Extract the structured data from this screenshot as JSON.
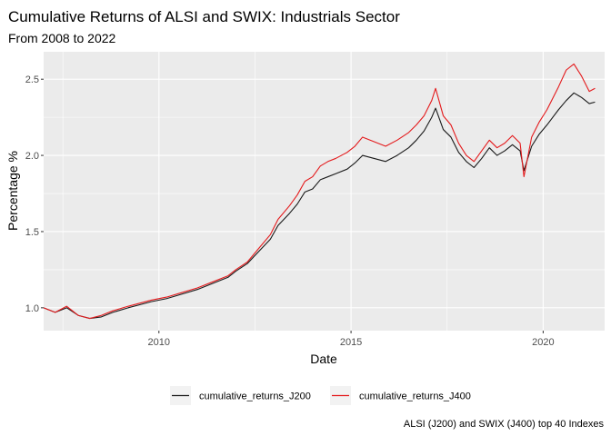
{
  "chart_data": {
    "type": "line",
    "title": "Cumulative Returns of ALSI and SWIX: Industrials Sector",
    "subtitle": "From 2008 to 2022",
    "xlabel": "Date",
    "ylabel": "Percentage %",
    "caption": "ALSI (J200) and SWIX (J400) top 40 Indexes",
    "xlim": [
      2007.0,
      2021.6
    ],
    "ylim": [
      0.85,
      2.68
    ],
    "x_ticks": [
      2010,
      2015,
      2020
    ],
    "x_tick_labels": [
      "2010",
      "2015",
      "2020"
    ],
    "y_ticks": [
      1.0,
      1.5,
      2.0,
      2.5
    ],
    "y_tick_labels": [
      "1.0",
      "1.5",
      "2.0",
      "2.5"
    ],
    "grid": true,
    "legend_position": "bottom",
    "series": [
      {
        "name": "cumulative_returns_J200",
        "color": "#1a1a1a",
        "x": [
          2007.0,
          2007.3,
          2007.6,
          2007.9,
          2008.2,
          2008.5,
          2008.8,
          2009.2,
          2009.5,
          2009.8,
          2010.2,
          2010.6,
          2011.0,
          2011.4,
          2011.8,
          2012.0,
          2012.3,
          2012.6,
          2012.9,
          2013.1,
          2013.4,
          2013.6,
          2013.8,
          2014.0,
          2014.2,
          2014.4,
          2014.6,
          2014.9,
          2015.1,
          2015.3,
          2015.6,
          2015.9,
          2016.2,
          2016.5,
          2016.7,
          2016.9,
          2017.1,
          2017.2,
          2017.4,
          2017.6,
          2017.8,
          2018.0,
          2018.2,
          2018.4,
          2018.6,
          2018.8,
          2019.0,
          2019.2,
          2019.4,
          2019.5,
          2019.7,
          2019.9,
          2020.1,
          2020.4,
          2020.6,
          2020.8,
          2021.0,
          2021.2,
          2021.35
        ],
        "values": [
          1.0,
          0.97,
          1.0,
          0.95,
          0.93,
          0.94,
          0.97,
          1.0,
          1.02,
          1.04,
          1.06,
          1.09,
          1.12,
          1.16,
          1.2,
          1.24,
          1.29,
          1.37,
          1.45,
          1.54,
          1.62,
          1.68,
          1.76,
          1.78,
          1.84,
          1.86,
          1.88,
          1.91,
          1.95,
          2.0,
          1.98,
          1.96,
          2.0,
          2.05,
          2.1,
          2.16,
          2.25,
          2.31,
          2.17,
          2.12,
          2.02,
          1.96,
          1.92,
          1.98,
          2.05,
          2.0,
          2.03,
          2.07,
          2.03,
          1.9,
          2.06,
          2.14,
          2.2,
          2.3,
          2.36,
          2.41,
          2.38,
          2.34,
          2.35
        ]
      },
      {
        "name": "cumulative_returns_J400",
        "color": "#e41a1c",
        "x": [
          2007.0,
          2007.3,
          2007.6,
          2007.9,
          2008.2,
          2008.5,
          2008.8,
          2009.2,
          2009.5,
          2009.8,
          2010.2,
          2010.6,
          2011.0,
          2011.4,
          2011.8,
          2012.0,
          2012.3,
          2012.6,
          2012.9,
          2013.1,
          2013.4,
          2013.6,
          2013.8,
          2014.0,
          2014.2,
          2014.4,
          2014.6,
          2014.9,
          2015.1,
          2015.3,
          2015.6,
          2015.9,
          2016.2,
          2016.5,
          2016.7,
          2016.9,
          2017.1,
          2017.2,
          2017.4,
          2017.6,
          2017.8,
          2018.0,
          2018.2,
          2018.4,
          2018.6,
          2018.8,
          2019.0,
          2019.2,
          2019.4,
          2019.5,
          2019.7,
          2019.9,
          2020.1,
          2020.4,
          2020.6,
          2020.8,
          2021.0,
          2021.2,
          2021.35
        ],
        "values": [
          1.0,
          0.97,
          1.01,
          0.95,
          0.93,
          0.95,
          0.98,
          1.01,
          1.03,
          1.05,
          1.07,
          1.1,
          1.13,
          1.17,
          1.21,
          1.25,
          1.3,
          1.39,
          1.48,
          1.58,
          1.67,
          1.74,
          1.83,
          1.86,
          1.93,
          1.96,
          1.98,
          2.02,
          2.06,
          2.12,
          2.09,
          2.06,
          2.1,
          2.15,
          2.2,
          2.26,
          2.36,
          2.44,
          2.26,
          2.2,
          2.08,
          2.0,
          1.96,
          2.03,
          2.1,
          2.05,
          2.08,
          2.13,
          2.08,
          1.86,
          2.12,
          2.22,
          2.3,
          2.45,
          2.56,
          2.6,
          2.52,
          2.42,
          2.44
        ]
      }
    ]
  }
}
